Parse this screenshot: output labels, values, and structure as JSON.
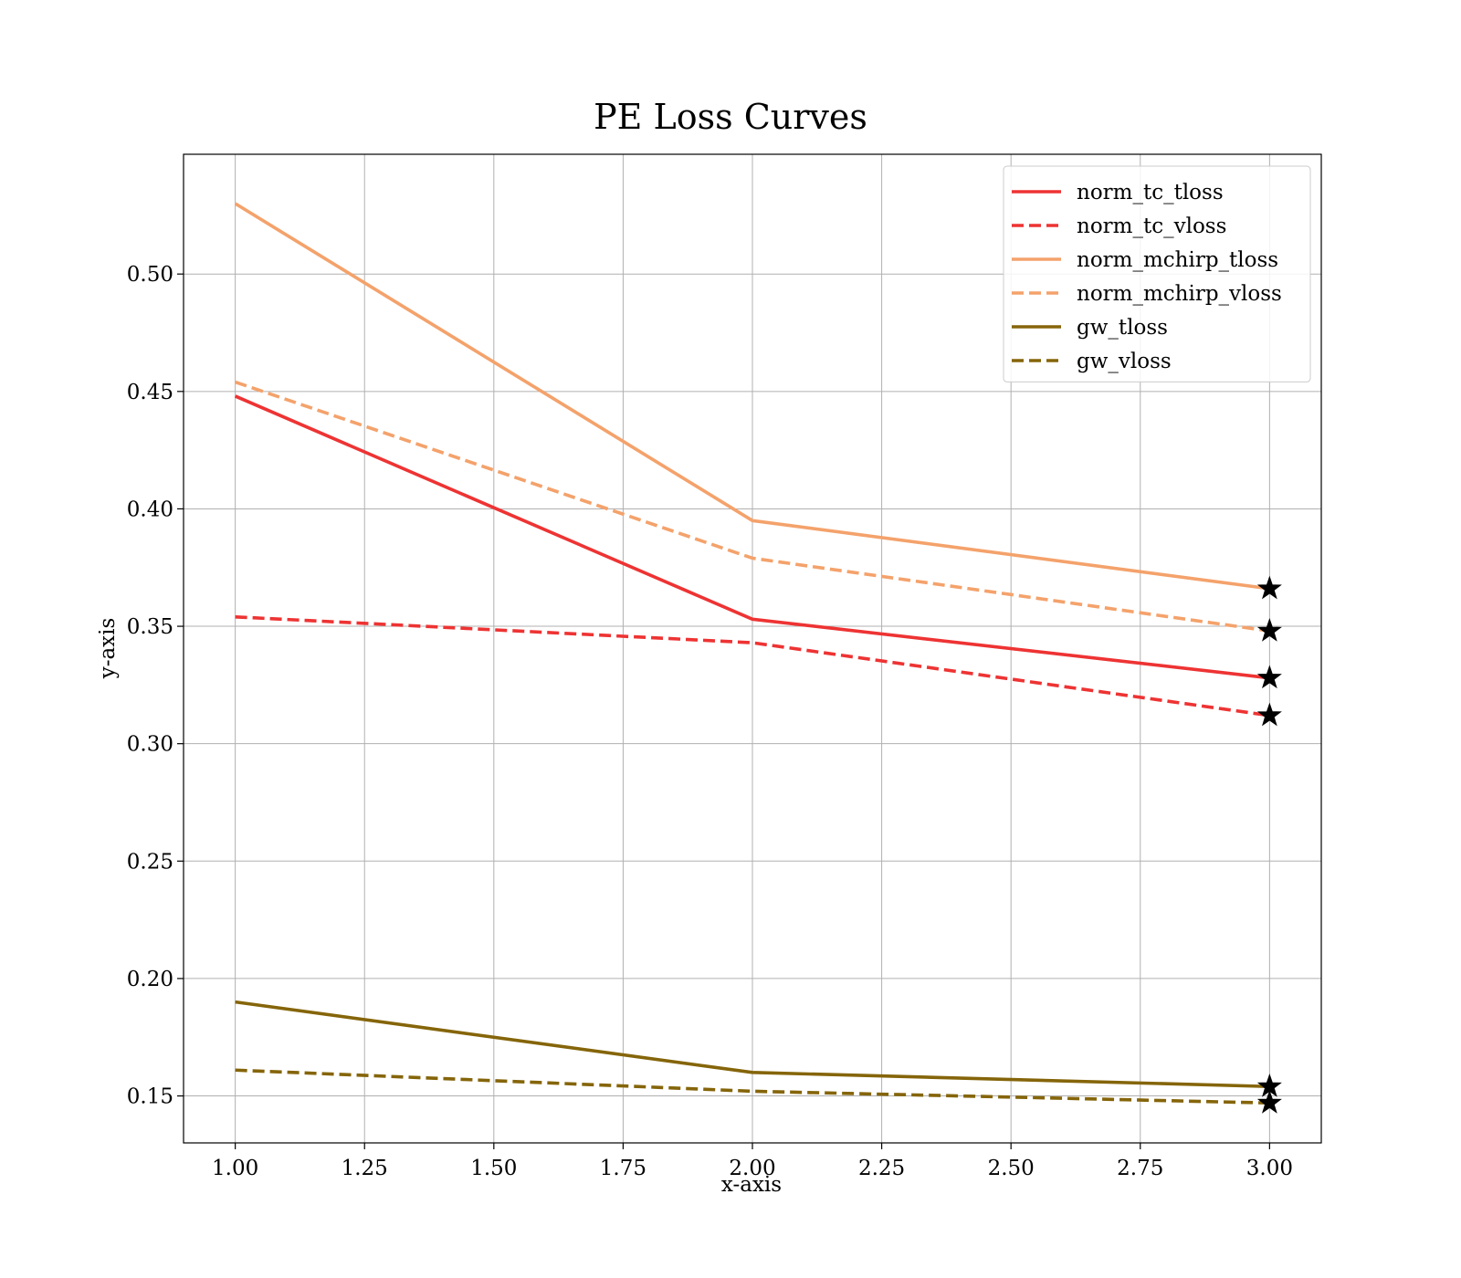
{
  "chart_data": {
    "type": "line",
    "title": "PE Loss Curves",
    "xlabel": "x-axis",
    "ylabel": "y-axis",
    "xlim": [
      0.9,
      3.1
    ],
    "ylim": [
      0.13,
      0.551
    ],
    "xticks": [
      1.0,
      1.25,
      1.5,
      1.75,
      2.0,
      2.25,
      2.5,
      2.75,
      3.0
    ],
    "xtick_labels": [
      "1.00",
      "1.25",
      "1.50",
      "1.75",
      "2.00",
      "2.25",
      "2.50",
      "2.75",
      "3.00"
    ],
    "yticks": [
      0.15,
      0.2,
      0.25,
      0.3,
      0.35,
      0.4,
      0.45,
      0.5
    ],
    "ytick_labels": [
      "0.15",
      "0.20",
      "0.25",
      "0.30",
      "0.35",
      "0.40",
      "0.45",
      "0.50"
    ],
    "grid": true,
    "legend_position": "top-right",
    "x": [
      1,
      2,
      3
    ],
    "series": [
      {
        "name": "norm_tc_tloss",
        "values": [
          0.448,
          0.353,
          0.328
        ],
        "color": "#ee3333",
        "dashed": false
      },
      {
        "name": "norm_tc_vloss",
        "values": [
          0.354,
          0.343,
          0.312
        ],
        "color": "#ee3333",
        "dashed": true
      },
      {
        "name": "norm_mchirp_tloss",
        "values": [
          0.53,
          0.395,
          0.366
        ],
        "color": "#f4a26b",
        "dashed": false
      },
      {
        "name": "norm_mchirp_vloss",
        "values": [
          0.454,
          0.379,
          0.348
        ],
        "color": "#f4a26b",
        "dashed": true
      },
      {
        "name": "gw_tloss",
        "values": [
          0.19,
          0.16,
          0.154
        ],
        "color": "#85650a",
        "dashed": false
      },
      {
        "name": "gw_vloss",
        "values": [
          0.161,
          0.152,
          0.147
        ],
        "color": "#85650a",
        "dashed": true
      }
    ],
    "end_marker": "star",
    "end_marker_color": "#000000"
  }
}
